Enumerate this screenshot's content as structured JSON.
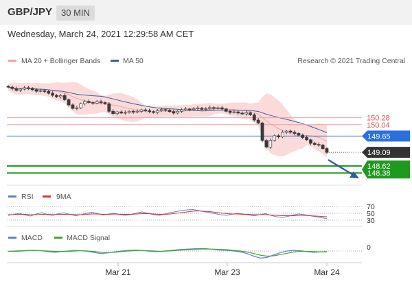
{
  "header": {
    "symbol": "GBP/JPY",
    "interval": "30 MIN",
    "datetime": "Wednesday, March 24, 2021 12:29:58 AM CET"
  },
  "legend": {
    "ma20": "MA 20 + Bollinger Bands",
    "ma50": "MA 50",
    "credit": "Research © 2021 Trading Central",
    "rsi": "RSI",
    "rsi_ma": "9MA",
    "macd": "MACD",
    "macd_signal": "MACD Signal"
  },
  "colors": {
    "ma20": "#f5a0a0",
    "ma50": "#3a5f9e",
    "band_fill": "#fbdada",
    "resistance": "#e05050",
    "pivot": "#2a6fdb",
    "support": "#1f9a1f",
    "current": "#333333",
    "rsi": "#5b7fd6",
    "rsi_ma": "#e03030",
    "macd": "#5b7fd6",
    "macd_signal": "#46a72b"
  },
  "chart_data": [
    {
      "type": "candlestick",
      "x_labels": [
        "Mar 21",
        "Mar 23",
        "Mar 24"
      ],
      "price_labels": [
        {
          "value": 150.28,
          "label": "150.28",
          "kind": "resistance"
        },
        {
          "value": 150.04,
          "label": "150.04",
          "kind": "resistance"
        },
        {
          "value": 149.65,
          "label": "149.65",
          "kind": "pivot"
        },
        {
          "value": 149.09,
          "label": "149.09",
          "kind": "current"
        },
        {
          "value": 148.62,
          "label": "148.62",
          "kind": "support"
        },
        {
          "value": 148.38,
          "label": "148.38",
          "kind": "support"
        }
      ],
      "ylim": [
        148.15,
        151.85
      ],
      "closes": [
        151.33,
        151.28,
        151.22,
        151.26,
        151.31,
        151.29,
        151.24,
        151.19,
        151.21,
        151.18,
        151.12,
        151.05,
        151.0,
        151.04,
        150.9,
        150.72,
        150.6,
        150.62,
        150.76,
        150.84,
        150.8,
        150.78,
        150.83,
        150.8,
        150.76,
        150.5,
        150.42,
        150.48,
        150.44,
        150.46,
        150.5,
        150.47,
        150.5,
        150.55,
        150.52,
        150.49,
        150.46,
        150.52,
        150.56,
        150.54,
        150.49,
        150.44,
        150.5,
        150.55,
        150.58,
        150.56,
        150.59,
        150.61,
        150.57,
        150.59,
        150.63,
        150.6,
        150.62,
        150.58,
        150.5,
        150.46,
        150.48,
        150.44,
        150.41,
        150.45,
        150.38,
        150.2,
        150.1,
        149.5,
        149.27,
        149.5,
        149.66,
        149.62,
        149.78,
        149.82,
        149.78,
        149.74,
        149.68,
        149.6,
        149.52,
        149.4,
        149.36,
        149.34,
        149.22,
        149.09
      ],
      "ma20_label": "MA 20 + Bollinger Bands",
      "ma50_label": "MA 50"
    },
    {
      "type": "line",
      "name": "RSI panel",
      "ticks": [
        "70",
        "50",
        "30"
      ],
      "ylim": [
        20,
        80
      ],
      "series": [
        {
          "name": "RSI",
          "values": [
            44,
            47,
            50,
            45,
            42,
            48,
            52,
            46,
            44,
            49,
            51,
            47,
            43,
            46,
            50,
            53,
            49,
            45,
            48,
            50,
            46,
            44,
            47,
            51,
            54,
            50,
            46,
            44,
            48,
            52,
            55,
            58,
            60,
            61,
            58,
            55,
            52,
            49,
            46,
            44,
            47,
            50,
            48,
            45,
            43,
            46,
            49,
            44,
            40,
            38,
            41,
            45,
            48,
            46,
            43,
            40,
            37,
            35
          ]
        },
        {
          "name": "9MA",
          "values": [
            46,
            46,
            47,
            47,
            46,
            46,
            47,
            47,
            46,
            47,
            47,
            47,
            46,
            46,
            47,
            48,
            48,
            47,
            47,
            48,
            47,
            47,
            47,
            48,
            49,
            49,
            48,
            47,
            47,
            48,
            50,
            52,
            54,
            56,
            57,
            56,
            55,
            53,
            51,
            49,
            48,
            48,
            47,
            47,
            46,
            46,
            46,
            45,
            44,
            43,
            43,
            43,
            44,
            44,
            43,
            42,
            41,
            40
          ]
        }
      ]
    },
    {
      "type": "line",
      "name": "MACD panel",
      "ticks": [
        "0"
      ],
      "ylim": [
        -0.3,
        0.3
      ],
      "series": [
        {
          "name": "MACD",
          "values": [
            -0.01,
            0.0,
            0.01,
            0.02,
            0.02,
            0.01,
            -0.02,
            -0.04,
            -0.02,
            0.0,
            0.02,
            0.01,
            -0.01,
            -0.05,
            -0.08,
            -0.06,
            -0.03,
            0.0,
            0.02,
            0.03,
            0.02,
            0.0,
            -0.02,
            -0.01,
            0.01,
            0.03,
            0.05,
            0.06,
            0.07,
            0.08,
            0.07,
            0.05,
            0.03,
            0.02,
            0.0,
            -0.03,
            -0.08,
            -0.16,
            -0.22,
            -0.2,
            -0.12,
            -0.05,
            0.0,
            0.02,
            0.01,
            -0.02,
            -0.04,
            -0.03,
            -0.02
          ]
        },
        {
          "name": "MACD Signal",
          "values": [
            -0.01,
            -0.01,
            0.0,
            0.01,
            0.01,
            0.01,
            0.0,
            -0.01,
            -0.02,
            -0.01,
            0.0,
            0.01,
            0.0,
            -0.02,
            -0.04,
            -0.05,
            -0.04,
            -0.02,
            0.0,
            0.01,
            0.02,
            0.01,
            0.0,
            -0.01,
            0.0,
            0.01,
            0.03,
            0.04,
            0.05,
            0.06,
            0.06,
            0.06,
            0.05,
            0.04,
            0.02,
            0.0,
            -0.03,
            -0.08,
            -0.13,
            -0.16,
            -0.15,
            -0.11,
            -0.07,
            -0.03,
            -0.01,
            -0.01,
            -0.02,
            -0.03,
            -0.03
          ]
        }
      ]
    }
  ]
}
